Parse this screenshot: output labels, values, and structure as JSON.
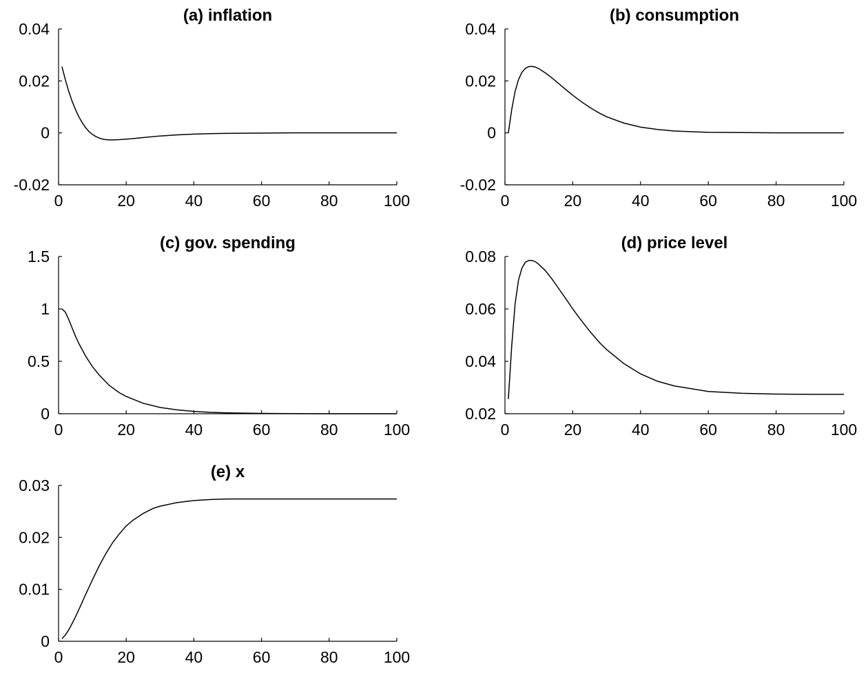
{
  "chart_data": [
    {
      "type": "line",
      "title": "(a) inflation",
      "xlim": [
        0,
        100
      ],
      "ylim": [
        -0.02,
        0.04
      ],
      "xticks": [
        "0",
        "20",
        "40",
        "60",
        "80",
        "100"
      ],
      "yticks": [
        "-0.02",
        "0",
        "0.02",
        "0.04"
      ],
      "grid": false,
      "series": [
        {
          "x": [
            1,
            2,
            3,
            4,
            5,
            6,
            7,
            8,
            9,
            10,
            11,
            12,
            13,
            14,
            15,
            16,
            18,
            20,
            22,
            25,
            30,
            35,
            40,
            45,
            50,
            60,
            70,
            80,
            90,
            100
          ],
          "y": [
            0.0255,
            0.0205,
            0.016,
            0.0122,
            0.009,
            0.0062,
            0.0039,
            0.002,
            0.0005,
            -0.0006,
            -0.0014,
            -0.002,
            -0.0024,
            -0.0026,
            -0.0027,
            -0.0027,
            -0.0026,
            -0.0024,
            -0.0022,
            -0.0018,
            -0.0012,
            -0.0008,
            -0.0005,
            -0.0003,
            -0.0002,
            -0.0001,
            0.0,
            0.0,
            0.0,
            0.0
          ]
        }
      ]
    },
    {
      "type": "line",
      "title": "(b) consumption",
      "xlim": [
        0,
        100
      ],
      "ylim": [
        -0.02,
        0.04
      ],
      "xticks": [
        "0",
        "20",
        "40",
        "60",
        "80",
        "100"
      ],
      "yticks": [
        "-0.02",
        "0",
        "0.02",
        "0.04"
      ],
      "grid": false,
      "series": [
        {
          "x": [
            1,
            2,
            3,
            4,
            5,
            6,
            7,
            8,
            9,
            10,
            12,
            14,
            16,
            18,
            20,
            22,
            25,
            28,
            30,
            35,
            40,
            45,
            50,
            60,
            70,
            80,
            90,
            100
          ],
          "y": [
            0.0,
            0.009,
            0.016,
            0.0205,
            0.0233,
            0.0248,
            0.0255,
            0.0256,
            0.0253,
            0.0247,
            0.023,
            0.021,
            0.0188,
            0.0166,
            0.0145,
            0.0125,
            0.0098,
            0.0075,
            0.0062,
            0.0038,
            0.0022,
            0.0013,
            0.0007,
            0.0002,
            0.0001,
            0.0,
            0.0,
            0.0
          ]
        }
      ]
    },
    {
      "type": "line",
      "title": "(c) gov. spending",
      "xlim": [
        0,
        100
      ],
      "ylim": [
        0,
        1.5
      ],
      "xticks": [
        "0",
        "20",
        "40",
        "60",
        "80",
        "100"
      ],
      "yticks": [
        "0",
        "0.5",
        "1",
        "1.5"
      ],
      "grid": false,
      "series": [
        {
          "x": [
            1,
            2,
            3,
            4,
            5,
            6,
            8,
            10,
            12,
            15,
            18,
            20,
            25,
            30,
            35,
            40,
            45,
            50,
            60,
            70,
            80,
            90,
            100
          ],
          "y": [
            1.0,
            0.97,
            0.9,
            0.82,
            0.74,
            0.67,
            0.55,
            0.45,
            0.37,
            0.27,
            0.2,
            0.165,
            0.1,
            0.06,
            0.037,
            0.022,
            0.013,
            0.008,
            0.003,
            0.001,
            0.0,
            0.0,
            0.0
          ]
        }
      ]
    },
    {
      "type": "line",
      "title": "(d) price level",
      "xlim": [
        0,
        100
      ],
      "ylim": [
        0.02,
        0.08
      ],
      "xticks": [
        "0",
        "20",
        "40",
        "60",
        "80",
        "100"
      ],
      "yticks": [
        "0.02",
        "0.04",
        "0.06",
        "0.08"
      ],
      "grid": false,
      "series": [
        {
          "x": [
            1,
            2,
            3,
            4,
            5,
            6,
            7,
            8,
            9,
            10,
            12,
            14,
            16,
            18,
            20,
            22,
            25,
            28,
            30,
            35,
            40,
            45,
            50,
            60,
            70,
            80,
            90,
            100
          ],
          "y": [
            0.0256,
            0.046,
            0.062,
            0.071,
            0.0755,
            0.0778,
            0.0785,
            0.0785,
            0.078,
            0.077,
            0.0745,
            0.0712,
            0.0675,
            0.0638,
            0.06,
            0.0565,
            0.0515,
            0.047,
            0.0445,
            0.0392,
            0.0352,
            0.0324,
            0.0306,
            0.0285,
            0.0278,
            0.0275,
            0.0274,
            0.0274
          ]
        }
      ]
    },
    {
      "type": "line",
      "title": "(e) x",
      "xlim": [
        0,
        100
      ],
      "ylim": [
        0,
        0.03
      ],
      "xticks": [
        "0",
        "20",
        "40",
        "60",
        "80",
        "100"
      ],
      "yticks": [
        "0",
        "0.01",
        "0.02",
        "0.03"
      ],
      "grid": false,
      "series": [
        {
          "x": [
            1,
            2,
            3,
            4,
            5,
            6,
            8,
            10,
            12,
            14,
            16,
            18,
            20,
            22,
            25,
            28,
            30,
            35,
            40,
            45,
            50,
            60,
            70,
            80,
            90,
            100
          ],
          "y": [
            0.0005,
            0.0012,
            0.0022,
            0.0034,
            0.0047,
            0.0061,
            0.009,
            0.0118,
            0.0145,
            0.0169,
            0.019,
            0.0207,
            0.0222,
            0.0233,
            0.0246,
            0.0256,
            0.026,
            0.0267,
            0.0271,
            0.0273,
            0.0274,
            0.0274,
            0.0274,
            0.0274,
            0.0274,
            0.0274
          ]
        }
      ]
    }
  ]
}
